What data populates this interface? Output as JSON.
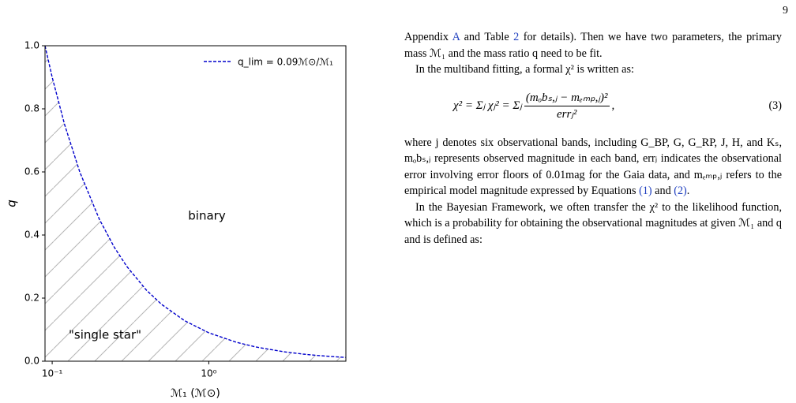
{
  "page_number": "9",
  "chart_data": {
    "type": "line",
    "x": [
      0.09,
      0.1,
      0.12,
      0.15,
      0.2,
      0.25,
      0.3,
      0.4,
      0.5,
      0.7,
      1,
      1.5,
      2,
      3,
      4,
      5,
      6,
      7.5
    ],
    "series": [
      {
        "name": "q_lim = 0.09ℳ⊙/ℳ₁",
        "color": "#0000cc",
        "values": [
          1,
          0.9,
          0.75,
          0.6,
          0.45,
          0.36,
          0.3,
          0.225,
          0.18,
          0.1286,
          0.09,
          0.06,
          0.045,
          0.03,
          0.0225,
          0.018,
          0.015,
          0.012
        ]
      }
    ],
    "xscale": "log",
    "xlim": [
      0.09,
      7.5
    ],
    "xticks": [
      {
        "value": 0.1,
        "label": "10⁻¹"
      },
      {
        "value": 1,
        "label": "10⁰"
      }
    ],
    "ylim": [
      0,
      1
    ],
    "yticks": [
      {
        "value": 0,
        "label": "0.0"
      },
      0.2,
      0.4,
      0.6,
      0.8,
      {
        "value": 1,
        "label": "1.0"
      }
    ],
    "x_label": "ℳ₁ (ℳ⊙)",
    "y_label": "q",
    "annotations": [
      "binary",
      "\"single star\""
    ],
    "legend": "upper right"
  },
  "text": {
    "p1": [
      "Appendix ",
      "A",
      " and Table ",
      "2",
      " for details). Then we have two parameters, the primary mass ℳ₁ and the mass ratio q need to be fit."
    ],
    "p2": "In the multiband fitting, a formal χ² is written as:",
    "equation": {
      "lhs": "χ² = Σⱼ χⱼ² = Σⱼ",
      "numerator": "(mₒbₛ,ⱼ − mₑₘₚ,ⱼ)²",
      "denominator": "errⱼ²",
      "tail": ",",
      "number": "(3)"
    },
    "p3": [
      "where j denotes six observational bands, including G_BP, G, G_RP, J, H, and Kₛ, mₒbₛ,ⱼ represents observed magnitude in each band, errⱼ indicates the observational error involving error floors of 0.01mag for the Gaia data, and mₑₘₚ,ⱼ refers to the empirical model magnitude expressed by Equations ",
      "(1)",
      " and ",
      "(2)",
      "."
    ],
    "p4": "In the Bayesian Framework, we often transfer the χ² to the likelihood function, which is a probability for obtaining the observational magnitudes at given ℳ₁ and q and is defined as:"
  }
}
